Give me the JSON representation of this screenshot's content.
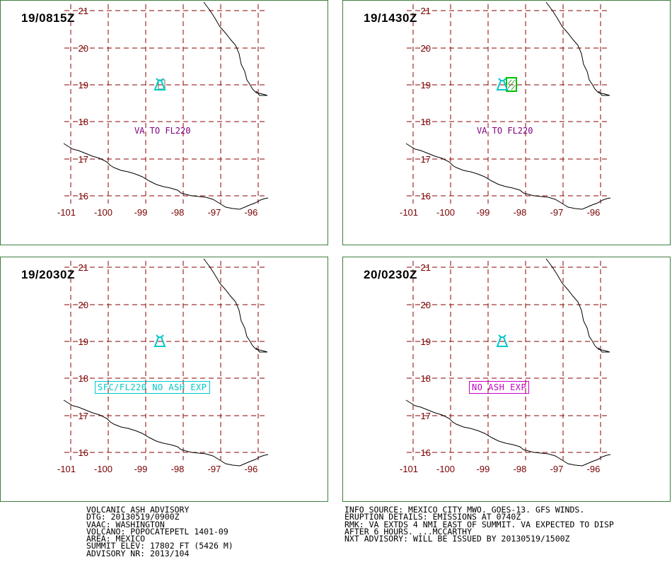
{
  "panels": [
    {
      "time": "19/0815Z",
      "label": "VA TO FL220",
      "label_style": "plain",
      "label_color": "#800080",
      "ash_area": "small"
    },
    {
      "time": "19/1430Z",
      "label": "VA TO FL220",
      "label_style": "plain",
      "label_color": "#800080",
      "ash_area": "box"
    },
    {
      "time": "19/2030Z",
      "label": "SFC/FL220 NO ASH EXP",
      "label_style": "boxed",
      "label_color": "#00d0d0",
      "ash_area": "none"
    },
    {
      "time": "20/0230Z",
      "label": "NO ASH EXP",
      "label_style": "boxed",
      "label_color": "#d000d0",
      "ash_area": "none"
    }
  ],
  "axes": {
    "lat_ticks": [
      "21",
      "20",
      "19",
      "18",
      "17",
      "16"
    ],
    "lon_ticks": [
      "-101",
      "-100",
      "-99",
      "-98",
      "-97",
      "-96"
    ]
  },
  "colors": {
    "grid": "#8b0000",
    "coast": "#000000",
    "volcano": "#00c8c8",
    "ash_box": "#00c000",
    "border": "#3f7f3f"
  },
  "advisory_left": [
    "VOLCANIC ASH ADVISORY",
    "DTG: 20130519/0900Z",
    "VAAC: WASHINGTON",
    "VOLCANO: POPOCATEPETL 1401-09",
    "AREA: MEXICO",
    "SUMMIT ELEV: 17802 FT (5426 M)",
    "ADVISORY NR: 2013/104"
  ],
  "advisory_right": [
    "INFO SOURCE: MEXICO CITY MWO. GOES-13. GFS WINDS.",
    "ERUPTION DETAILS: EMISSIONS AT 0740Z",
    "RMK: VA EXTDS 4 NMI EAST OF SUMMIT. VA EXPECTED TO DISP",
    "AFTER 6 HOURS. ...MCCARTHY",
    "NXT ADVISORY: WILL BE ISSUED BY 20130519/1500Z"
  ]
}
